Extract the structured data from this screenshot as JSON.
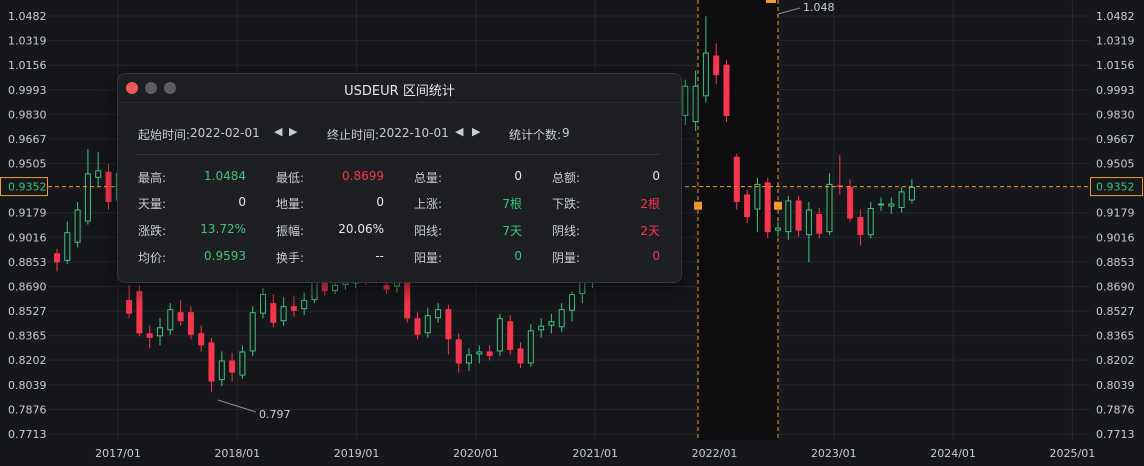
{
  "colors": {
    "up": "#3ec47e",
    "down": "#f5364d",
    "marker": "#f29a2e",
    "bg": "#16171b"
  },
  "chart_data": {
    "type": "candlestick",
    "symbol": "USDEUR",
    "x_ticks": [
      "2017/01",
      "2018/01",
      "2019/01",
      "2020/01",
      "2021/01",
      "2022/01",
      "2023/01",
      "2024/01",
      "2025/01"
    ],
    "y_ticks": [
      "1.0482",
      "1.0319",
      "1.0156",
      "0.9993",
      "0.9830",
      "0.9667",
      "0.9505",
      "0.9342",
      "0.9179",
      "0.9016",
      "0.8853",
      "0.8690",
      "0.8527",
      "0.8365",
      "0.8202",
      "0.8039",
      "0.7876",
      "0.7713"
    ],
    "ylim": [
      0.7713,
      1.0482
    ],
    "current_price": "0.9352",
    "annotation_high": "1.048",
    "annotation_low": "0.797",
    "selected_range": [
      "2022-02-01",
      "2022-10-01"
    ],
    "candles": [
      {
        "o": 0.891,
        "c": 0.885,
        "h": 0.894,
        "l": 0.879
      },
      {
        "o": 0.886,
        "c": 0.905,
        "h": 0.912,
        "l": 0.884
      },
      {
        "o": 0.898,
        "c": 0.92,
        "h": 0.925,
        "l": 0.895
      },
      {
        "o": 0.912,
        "c": 0.944,
        "h": 0.96,
        "l": 0.91
      },
      {
        "o": 0.941,
        "c": 0.946,
        "h": 0.958,
        "l": 0.935
      },
      {
        "o": 0.945,
        "c": 0.925,
        "h": 0.95,
        "l": 0.92
      },
      {
        "o": 0.926,
        "c": 0.944,
        "h": 0.952,
        "l": 0.921
      },
      {
        "o": 0.86,
        "c": 0.851,
        "h": 0.87,
        "l": 0.848
      },
      {
        "o": 0.866,
        "c": 0.838,
        "h": 0.87,
        "l": 0.836
      },
      {
        "o": 0.838,
        "c": 0.835,
        "h": 0.843,
        "l": 0.828
      },
      {
        "o": 0.836,
        "c": 0.842,
        "h": 0.848,
        "l": 0.83
      },
      {
        "o": 0.84,
        "c": 0.854,
        "h": 0.858,
        "l": 0.837
      },
      {
        "o": 0.852,
        "c": 0.846,
        "h": 0.86,
        "l": 0.843
      },
      {
        "o": 0.852,
        "c": 0.837,
        "h": 0.856,
        "l": 0.834
      },
      {
        "o": 0.838,
        "c": 0.83,
        "h": 0.843,
        "l": 0.826
      },
      {
        "o": 0.832,
        "c": 0.806,
        "h": 0.835,
        "l": 0.799
      },
      {
        "o": 0.807,
        "c": 0.82,
        "h": 0.826,
        "l": 0.803
      },
      {
        "o": 0.82,
        "c": 0.812,
        "h": 0.825,
        "l": 0.806
      },
      {
        "o": 0.81,
        "c": 0.826,
        "h": 0.83,
        "l": 0.808
      },
      {
        "o": 0.826,
        "c": 0.852,
        "h": 0.856,
        "l": 0.823
      },
      {
        "o": 0.851,
        "c": 0.864,
        "h": 0.868,
        "l": 0.848
      },
      {
        "o": 0.858,
        "c": 0.845,
        "h": 0.864,
        "l": 0.842
      },
      {
        "o": 0.846,
        "c": 0.856,
        "h": 0.862,
        "l": 0.843
      },
      {
        "o": 0.856,
        "c": 0.853,
        "h": 0.863,
        "l": 0.849
      },
      {
        "o": 0.854,
        "c": 0.86,
        "h": 0.865,
        "l": 0.85
      },
      {
        "o": 0.86,
        "c": 0.874,
        "h": 0.878,
        "l": 0.858
      },
      {
        "o": 0.878,
        "c": 0.866,
        "h": 0.882,
        "l": 0.863
      },
      {
        "o": 0.866,
        "c": 0.87,
        "h": 0.874,
        "l": 0.864
      },
      {
        "o": 0.87,
        "c": 0.872,
        "h": 0.876,
        "l": 0.867
      },
      {
        "o": 0.871,
        "c": 0.875,
        "h": 0.879,
        "l": 0.868
      },
      {
        "o": 0.874,
        "c": 0.873,
        "h": 0.878,
        "l": 0.87
      },
      {
        "o": 0.873,
        "c": 0.877,
        "h": 0.881,
        "l": 0.871
      },
      {
        "o": 0.87,
        "c": 0.867,
        "h": 0.874,
        "l": 0.864
      },
      {
        "o": 0.869,
        "c": 0.872,
        "h": 0.876,
        "l": 0.865
      },
      {
        "o": 0.875,
        "c": 0.848,
        "h": 0.878,
        "l": 0.845
      },
      {
        "o": 0.848,
        "c": 0.837,
        "h": 0.852,
        "l": 0.834
      },
      {
        "o": 0.838,
        "c": 0.85,
        "h": 0.855,
        "l": 0.835
      },
      {
        "o": 0.848,
        "c": 0.854,
        "h": 0.858,
        "l": 0.845
      },
      {
        "o": 0.854,
        "c": 0.834,
        "h": 0.857,
        "l": 0.824
      },
      {
        "o": 0.834,
        "c": 0.818,
        "h": 0.838,
        "l": 0.812
      },
      {
        "o": 0.818,
        "c": 0.824,
        "h": 0.828,
        "l": 0.813
      },
      {
        "o": 0.824,
        "c": 0.826,
        "h": 0.83,
        "l": 0.818
      },
      {
        "o": 0.826,
        "c": 0.823,
        "h": 0.83,
        "l": 0.82
      },
      {
        "o": 0.826,
        "c": 0.848,
        "h": 0.851,
        "l": 0.823
      },
      {
        "o": 0.846,
        "c": 0.827,
        "h": 0.85,
        "l": 0.824
      },
      {
        "o": 0.828,
        "c": 0.818,
        "h": 0.832,
        "l": 0.815
      },
      {
        "o": 0.818,
        "c": 0.84,
        "h": 0.844,
        "l": 0.816
      },
      {
        "o": 0.84,
        "c": 0.843,
        "h": 0.848,
        "l": 0.835
      },
      {
        "o": 0.843,
        "c": 0.846,
        "h": 0.851,
        "l": 0.838
      },
      {
        "o": 0.842,
        "c": 0.854,
        "h": 0.858,
        "l": 0.839
      },
      {
        "o": 0.853,
        "c": 0.864,
        "h": 0.866,
        "l": 0.846
      },
      {
        "o": 0.864,
        "c": 0.878,
        "h": 0.88,
        "l": 0.858
      },
      {
        "o": 0.876,
        "c": 0.884,
        "h": 0.888,
        "l": 0.868
      },
      {
        "o": 0.878,
        "c": 0.89,
        "h": 0.894,
        "l": 0.876
      },
      {
        "o": 0.888,
        "c": 0.903,
        "h": 0.908,
        "l": 0.885
      },
      {
        "o": 0.903,
        "c": 0.934,
        "h": 0.95,
        "l": 0.901
      },
      {
        "o": 0.929,
        "c": 0.934,
        "h": 0.939,
        "l": 0.922
      },
      {
        "o": 0.937,
        "c": 0.921,
        "h": 0.942,
        "l": 0.918
      },
      {
        "o": 0.925,
        "c": 0.944,
        "h": 0.949,
        "l": 0.921
      },
      {
        "o": 0.942,
        "c": 0.958,
        "h": 0.964,
        "l": 0.936
      },
      {
        "o": 0.957,
        "c": 0.98,
        "h": 0.986,
        "l": 0.951
      },
      {
        "o": 0.982,
        "c": 1.002,
        "h": 1.006,
        "l": 0.976
      },
      {
        "o": 0.978,
        "c": 1.002,
        "h": 1.012,
        "l": 0.972
      },
      {
        "o": 0.995,
        "c": 1.024,
        "h": 1.048,
        "l": 0.991
      },
      {
        "o": 1.022,
        "c": 1.009,
        "h": 1.03,
        "l": 1.003
      },
      {
        "o": 1.016,
        "c": 0.982,
        "h": 1.019,
        "l": 0.978
      },
      {
        "o": 0.955,
        "c": 0.925,
        "h": 0.957,
        "l": 0.92
      },
      {
        "o": 0.93,
        "c": 0.915,
        "h": 0.933,
        "l": 0.911
      },
      {
        "o": 0.92,
        "c": 0.937,
        "h": 0.941,
        "l": 0.905
      },
      {
        "o": 0.938,
        "c": 0.905,
        "h": 0.941,
        "l": 0.901
      },
      {
        "o": 0.906,
        "c": 0.908,
        "h": 0.912,
        "l": 0.902
      },
      {
        "o": 0.905,
        "c": 0.926,
        "h": 0.929,
        "l": 0.9
      },
      {
        "o": 0.926,
        "c": 0.906,
        "h": 0.929,
        "l": 0.902
      },
      {
        "o": 0.903,
        "c": 0.92,
        "h": 0.925,
        "l": 0.885
      },
      {
        "o": 0.917,
        "c": 0.904,
        "h": 0.921,
        "l": 0.901
      },
      {
        "o": 0.905,
        "c": 0.937,
        "h": 0.944,
        "l": 0.903
      },
      {
        "o": 0.936,
        "c": 0.935,
        "h": 0.956,
        "l": 0.93
      },
      {
        "o": 0.935,
        "c": 0.914,
        "h": 0.94,
        "l": 0.912
      },
      {
        "o": 0.915,
        "c": 0.903,
        "h": 0.92,
        "l": 0.896
      },
      {
        "o": 0.903,
        "c": 0.921,
        "h": 0.925,
        "l": 0.901
      },
      {
        "o": 0.923,
        "c": 0.924,
        "h": 0.928,
        "l": 0.919
      },
      {
        "o": 0.922,
        "c": 0.924,
        "h": 0.928,
        "l": 0.917
      },
      {
        "o": 0.921,
        "c": 0.932,
        "h": 0.935,
        "l": 0.918
      },
      {
        "o": 0.926,
        "c": 0.935,
        "h": 0.94,
        "l": 0.924
      }
    ]
  },
  "panel": {
    "title": "USDEUR 区间统计",
    "start_label": "起始时间:",
    "start_value": "2022-02-01",
    "end_label": "终止时间:",
    "end_value": "2022-10-01",
    "count_label": "统计个数:",
    "count_value": "9",
    "rows": [
      [
        {
          "l": "最高:",
          "v": "1.0484",
          "c": "green"
        },
        {
          "l": "最低:",
          "v": "0.8699",
          "c": "red"
        },
        {
          "l": "总量:",
          "v": "0",
          "c": "white"
        },
        {
          "l": "总额:",
          "v": "0",
          "c": "white"
        }
      ],
      [
        {
          "l": "天量:",
          "v": "0",
          "c": "white"
        },
        {
          "l": "地量:",
          "v": "0",
          "c": "white"
        },
        {
          "l": "上涨:",
          "v": "7根",
          "c": "green"
        },
        {
          "l": "下跌:",
          "v": "2根",
          "c": "red"
        }
      ],
      [
        {
          "l": "涨跌:",
          "v": "13.72%",
          "c": "green"
        },
        {
          "l": "振幅:",
          "v": "20.06%",
          "c": "white"
        },
        {
          "l": "阳线:",
          "v": "7天",
          "c": "green"
        },
        {
          "l": "阴线:",
          "v": "2天",
          "c": "red"
        }
      ],
      [
        {
          "l": "均价:",
          "v": "0.9593",
          "c": "green"
        },
        {
          "l": "换手:",
          "v": "--",
          "c": "white"
        },
        {
          "l": "阳量:",
          "v": "0",
          "c": "green"
        },
        {
          "l": "阴量:",
          "v": "0",
          "c": "red"
        }
      ]
    ]
  }
}
